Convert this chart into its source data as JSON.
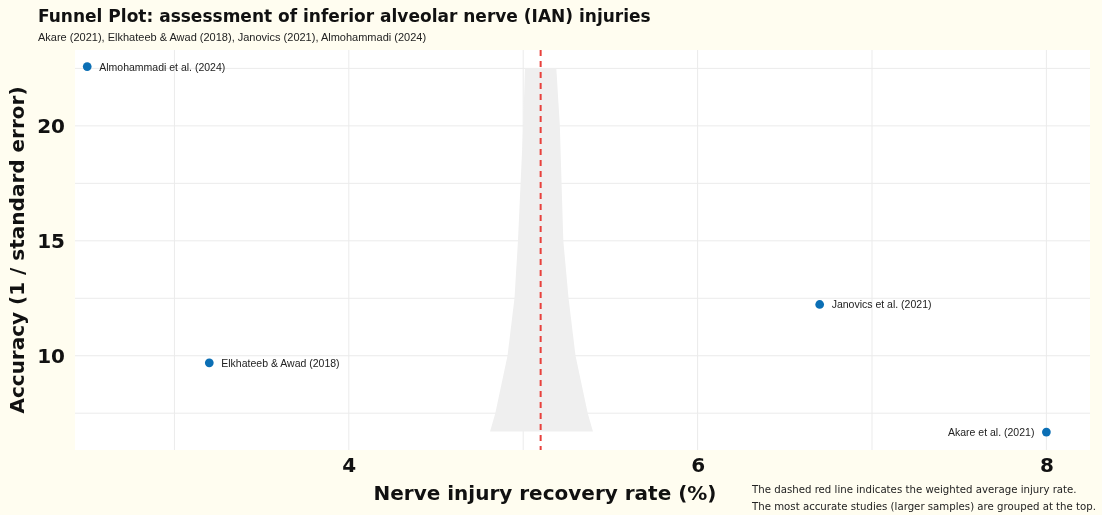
{
  "chart_data": {
    "type": "scatter",
    "title": "Funnel Plot: assessment of inferior alveolar nerve (IAN) injuries",
    "subtitle": "Akare (2021), Elkhateeb & Awad (2018), Janovics (2021), Almohammadi (2024)",
    "xlabel": "Nerve injury recovery rate (%)",
    "ylabel": "Accuracy (1 / standard error)",
    "xlim": [
      2.43,
      8.25
    ],
    "ylim": [
      5.9,
      23.3
    ],
    "xticks": [
      {
        "value": 3,
        "label": null
      },
      4,
      {
        "value": 5,
        "label": null
      },
      6,
      {
        "value": 7,
        "label": null
      },
      8
    ],
    "yticks": [
      {
        "value": 7.5,
        "label": null
      },
      10,
      {
        "value": 12.5,
        "label": null
      },
      15,
      {
        "value": 17.5,
        "label": null
      },
      20,
      {
        "value": 22.5,
        "label": null
      }
    ],
    "grid": true,
    "series": [
      {
        "type": "area",
        "color": "#efefef",
        "x": [
          5.01,
          5.0,
          4.97,
          4.95,
          4.91,
          4.84,
          4.81,
          5.4,
          5.37,
          5.3,
          5.26,
          5.23,
          5.21,
          5.19
        ],
        "values": [
          22.5,
          20,
          15,
          12.5,
          10,
          7.5,
          6.7,
          6.7,
          7.5,
          10,
          12.5,
          15,
          20,
          22.5
        ]
      },
      {
        "marker": "circle",
        "color": "#0b6fb5",
        "x": [
          2.5,
          3.2,
          6.7,
          8.0
        ],
        "values": [
          22.58,
          9.69,
          12.23,
          6.68
        ]
      }
    ],
    "ref_lines": [
      {
        "axis": "x",
        "value": 5.1,
        "color": "#e8413c",
        "line_style": "dashed"
      }
    ],
    "annotations": [
      {
        "text": "Almohammadi et al. (2024)",
        "x": 2.5,
        "y": 22.58
      },
      {
        "text": "Elkhateeb & Awad (2018)",
        "x": 3.2,
        "y": 9.69
      },
      {
        "text": "Janovics et al. (2021)",
        "x": 6.7,
        "y": 12.23
      },
      {
        "text": "Akare et al. (2021)",
        "x": 8.0,
        "y": 6.68
      },
      "The dashed red line indicates the weighted average injury rate.",
      "The most accurate studies (larger samples) are grouped at the top."
    ]
  }
}
